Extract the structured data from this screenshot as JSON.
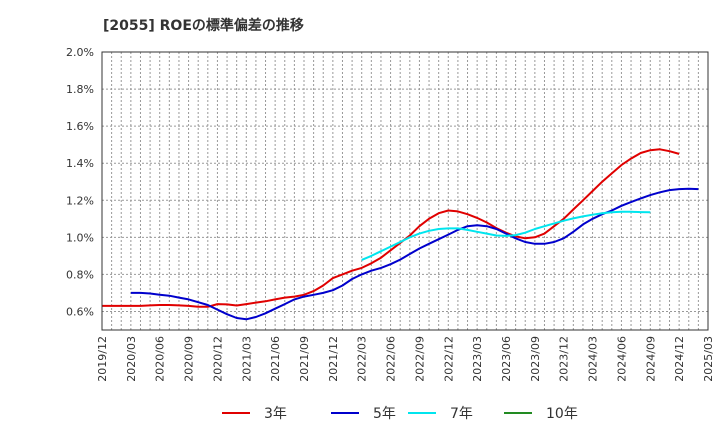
{
  "chart_data": {
    "type": "line",
    "title": "[2055]  ROEの標準偏差の推移",
    "xlabel": "",
    "ylabel": "",
    "ylim": [
      0.5,
      2.0
    ],
    "y_ticks": [
      0.6,
      0.8,
      1.0,
      1.2,
      1.4,
      1.6,
      1.8,
      2.0
    ],
    "y_tick_labels": [
      "0.6%",
      "0.8%",
      "1.0%",
      "1.2%",
      "1.4%",
      "1.6%",
      "1.8%",
      "2.0%"
    ],
    "x_tick_labels": [
      "2019/12",
      "2020/03",
      "2020/06",
      "2020/09",
      "2020/12",
      "2021/03",
      "2021/06",
      "2021/09",
      "2021/12",
      "2022/03",
      "2022/06",
      "2022/09",
      "2022/12",
      "2023/03",
      "2023/06",
      "2023/09",
      "2023/12",
      "2024/03",
      "2024/06",
      "2024/09",
      "2024/12",
      "2025/03"
    ],
    "grid": true,
    "legend_position": "bottom",
    "series": [
      {
        "name": "3年",
        "color": "#e00000",
        "start_index": 0,
        "values": [
          0.63,
          0.63,
          0.63,
          0.63,
          0.63,
          0.633,
          0.635,
          0.635,
          0.633,
          0.63,
          0.625,
          0.625,
          0.64,
          0.638,
          0.632,
          0.64,
          0.648,
          0.655,
          0.665,
          0.675,
          0.68,
          0.69,
          0.71,
          0.74,
          0.78,
          0.8,
          0.82,
          0.835,
          0.86,
          0.89,
          0.93,
          0.97,
          1.01,
          1.06,
          1.1,
          1.13,
          1.145,
          1.14,
          1.125,
          1.105,
          1.08,
          1.05,
          1.025,
          1.005,
          0.995,
          1.0,
          1.02,
          1.06,
          1.1,
          1.15,
          1.2,
          1.25,
          1.3,
          1.345,
          1.39,
          1.425,
          1.455,
          1.47,
          1.475,
          1.465,
          1.45
        ]
      },
      {
        "name": "5年",
        "color": "#0000cc",
        "start_index": 3,
        "values": [
          0.7,
          0.7,
          0.697,
          0.69,
          0.685,
          0.675,
          0.665,
          0.65,
          0.635,
          0.61,
          0.585,
          0.565,
          0.558,
          0.57,
          0.59,
          0.615,
          0.64,
          0.665,
          0.68,
          0.69,
          0.7,
          0.715,
          0.74,
          0.775,
          0.8,
          0.82,
          0.835,
          0.855,
          0.88,
          0.91,
          0.94,
          0.965,
          0.99,
          1.015,
          1.04,
          1.06,
          1.065,
          1.06,
          1.045,
          1.02,
          0.995,
          0.975,
          0.965,
          0.965,
          0.975,
          0.995,
          1.03,
          1.07,
          1.1,
          1.125,
          1.145,
          1.17,
          1.19,
          1.21,
          1.228,
          1.243,
          1.255,
          1.26,
          1.262,
          1.26
        ]
      },
      {
        "name": "7年",
        "color": "#00e5ee",
        "start_index": 27,
        "values": [
          0.878,
          0.9,
          0.925,
          0.95,
          0.975,
          1.0,
          1.02,
          1.035,
          1.045,
          1.048,
          1.048,
          1.04,
          1.03,
          1.02,
          1.01,
          1.008,
          1.012,
          1.025,
          1.045,
          1.06,
          1.075,
          1.09,
          1.102,
          1.113,
          1.122,
          1.13,
          1.135,
          1.138,
          1.138,
          1.136,
          1.135
        ]
      },
      {
        "name": "10年",
        "color": "#228b22",
        "start_index": 0,
        "values": []
      }
    ]
  }
}
